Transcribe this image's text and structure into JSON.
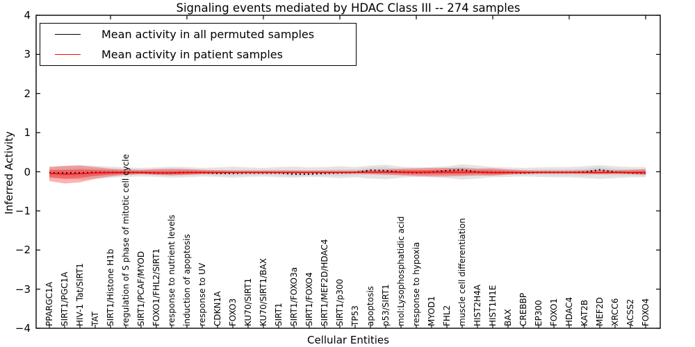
{
  "title": "Signaling events mediated by HDAC Class III -- 274 samples",
  "axes": {
    "ylabel": "Inferred Activity",
    "xlabel": "Cellular Entities"
  },
  "chart_data": {
    "type": "line",
    "title": "Signaling events mediated by HDAC Class III -- 274 samples",
    "xlabel": "Cellular Entities",
    "ylabel": "Inferred Activity",
    "ylim": [
      -4,
      4
    ],
    "grid": false,
    "legend_position": "upper left",
    "yticks": [
      {
        "value": 4,
        "label": "4"
      },
      {
        "value": 3,
        "label": "3"
      },
      {
        "value": 2,
        "label": "2"
      },
      {
        "value": 1,
        "label": "1"
      },
      {
        "value": 0,
        "label": "0"
      },
      {
        "value": -1,
        "label": "−1"
      },
      {
        "value": -2,
        "label": "−2"
      },
      {
        "value": -3,
        "label": "−3"
      },
      {
        "value": -4,
        "label": "−4"
      }
    ],
    "categories": [
      "PPARGC1A",
      "SIRT1/PGC1A",
      "HIV-1 Tat/SIRT1",
      "TAT",
      "SIRT1/Histone H1b",
      "regulation of S phase of mitotic cell cycle",
      "SIRT1/PCAF/MYOD",
      "FOXO1/FHL2/SIRT1",
      "response to nutrient levels",
      "induction of apoptosis",
      "response to UV",
      "CDKN1A",
      "FOXO3",
      "KU70/SIRT1",
      "KU70/SIRT1/BAX",
      "SIRT1",
      "SIRT1/FOXO3a",
      "SIRT1/FOXO4",
      "SIRT1/MEF2D/HDAC4",
      "SIRT1/p300",
      "TP53",
      "apoptosis",
      "p53/SIRT1",
      "mol:Lysophosphatidic acid",
      "response to hypoxia",
      "MYOD1",
      "FHL2",
      "muscle cell differentiation",
      "HIST2H4A",
      "HIST1H1E",
      "BAX",
      "CREBBP",
      "EP300",
      "FOXO1",
      "HDAC4",
      "KAT2B",
      "MEF2D",
      "XRCC6",
      "ACSS2",
      "FOXO4"
    ],
    "series": [
      {
        "name": "Mean activity in all permuted samples",
        "color": "#000000",
        "style": "dashed",
        "band_color": "#999999",
        "values": [
          -0.03,
          -0.03,
          -0.03,
          -0.02,
          -0.02,
          -0.02,
          -0.02,
          -0.03,
          -0.03,
          -0.02,
          -0.02,
          -0.04,
          -0.04,
          -0.03,
          -0.03,
          -0.03,
          -0.06,
          -0.06,
          -0.04,
          -0.03,
          -0.02,
          0.04,
          0.03,
          -0.01,
          -0.02,
          -0.01,
          0.03,
          0.05,
          -0.01,
          -0.02,
          -0.02,
          -0.03,
          -0.02,
          -0.02,
          -0.02,
          -0.01,
          0.05,
          -0.01,
          -0.03,
          -0.03
        ],
        "band_upper": [
          0.13,
          0.15,
          0.17,
          0.15,
          0.13,
          0.11,
          0.1,
          0.11,
          0.13,
          0.12,
          0.1,
          0.11,
          0.13,
          0.11,
          0.1,
          0.12,
          0.13,
          0.11,
          0.12,
          0.14,
          0.12,
          0.16,
          0.18,
          0.13,
          0.11,
          0.12,
          0.14,
          0.19,
          0.16,
          0.12,
          0.11,
          0.1,
          0.11,
          0.12,
          0.12,
          0.14,
          0.17,
          0.14,
          0.12,
          0.12
        ],
        "band_lower": [
          -0.16,
          -0.18,
          -0.2,
          -0.18,
          -0.15,
          -0.13,
          -0.12,
          -0.13,
          -0.15,
          -0.14,
          -0.12,
          -0.13,
          -0.15,
          -0.13,
          -0.12,
          -0.14,
          -0.15,
          -0.13,
          -0.14,
          -0.16,
          -0.14,
          -0.17,
          -0.19,
          -0.15,
          -0.13,
          -0.14,
          -0.16,
          -0.2,
          -0.17,
          -0.14,
          -0.13,
          -0.12,
          -0.13,
          -0.14,
          -0.14,
          -0.16,
          -0.18,
          -0.16,
          -0.14,
          -0.14
        ]
      },
      {
        "name": "Mean activity in patient samples",
        "color": "#ff0000",
        "style": "solid",
        "band_color": "#ff0000",
        "values": [
          -0.04,
          -0.06,
          -0.05,
          -0.03,
          -0.02,
          -0.02,
          -0.02,
          -0.03,
          -0.03,
          -0.02,
          -0.02,
          -0.02,
          -0.02,
          -0.02,
          -0.02,
          -0.02,
          -0.02,
          -0.02,
          -0.02,
          -0.02,
          -0.02,
          -0.01,
          -0.01,
          -0.01,
          -0.01,
          -0.01,
          -0.01,
          -0.01,
          -0.01,
          -0.02,
          -0.02,
          -0.02,
          -0.02,
          -0.02,
          -0.02,
          -0.02,
          -0.02,
          -0.02,
          -0.02,
          -0.02
        ],
        "band_upper": [
          0.12,
          0.15,
          0.16,
          0.12,
          0.08,
          0.06,
          0.05,
          0.07,
          0.08,
          0.07,
          0.05,
          0.04,
          0.03,
          0.03,
          0.03,
          0.03,
          0.03,
          0.03,
          0.03,
          0.03,
          0.03,
          0.05,
          0.06,
          0.08,
          0.09,
          0.1,
          0.1,
          0.09,
          0.08,
          0.09,
          0.06,
          0.04,
          0.03,
          0.03,
          0.03,
          0.04,
          0.05,
          0.04,
          0.05,
          0.07
        ],
        "band_lower": [
          -0.24,
          -0.3,
          -0.27,
          -0.18,
          -0.12,
          -0.08,
          -0.06,
          -0.08,
          -0.09,
          -0.08,
          -0.06,
          -0.05,
          -0.04,
          -0.04,
          -0.04,
          -0.04,
          -0.04,
          -0.04,
          -0.04,
          -0.04,
          -0.04,
          -0.06,
          -0.07,
          -0.09,
          -0.11,
          -0.12,
          -0.12,
          -0.11,
          -0.09,
          -0.1,
          -0.07,
          -0.05,
          -0.04,
          -0.04,
          -0.04,
          -0.05,
          -0.06,
          -0.05,
          -0.06,
          -0.08
        ]
      }
    ]
  }
}
